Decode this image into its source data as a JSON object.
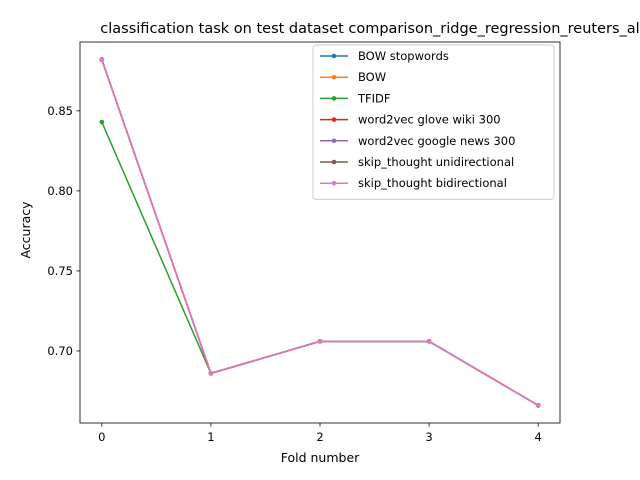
{
  "chart_data": {
    "type": "line",
    "title": "classification task on test dataset comparison_ridge_regression_reuters_all",
    "xlabel": "Fold number",
    "ylabel": "Accuracy",
    "x": [
      0,
      1,
      2,
      3,
      4
    ],
    "xticks": [
      "0",
      "1",
      "2",
      "3",
      "4"
    ],
    "yticks": [
      "0.70",
      "0.75",
      "0.80",
      "0.85"
    ],
    "ytick_values": [
      0.7,
      0.75,
      0.8,
      0.85
    ],
    "xlim": [
      -0.2,
      4.2
    ],
    "ylim": [
      0.655,
      0.893
    ],
    "grid": false,
    "legend_position": "top-right",
    "series": [
      {
        "name": "BOW stopwords",
        "color": "#1f77b4",
        "values": [
          0.882,
          0.686,
          0.706,
          0.706,
          0.666
        ]
      },
      {
        "name": "BOW",
        "color": "#ff7f0e",
        "values": [
          0.882,
          0.686,
          0.706,
          0.706,
          0.666
        ]
      },
      {
        "name": "TFIDF",
        "color": "#2ca02c",
        "values": [
          0.843,
          0.686,
          0.706,
          0.706,
          0.666
        ]
      },
      {
        "name": "word2vec glove wiki 300",
        "color": "#d62728",
        "values": [
          0.882,
          0.686,
          0.706,
          0.706,
          0.666
        ]
      },
      {
        "name": "word2vec google news 300",
        "color": "#9467bd",
        "values": [
          0.882,
          0.686,
          0.706,
          0.706,
          0.666
        ]
      },
      {
        "name": "skip_thought unidirectional",
        "color": "#8c564b",
        "values": [
          0.882,
          0.686,
          0.706,
          0.706,
          0.666
        ]
      },
      {
        "name": "skip_thought bidirectional",
        "color": "#e377c2",
        "values": [
          0.882,
          0.686,
          0.706,
          0.706,
          0.666
        ]
      }
    ]
  }
}
